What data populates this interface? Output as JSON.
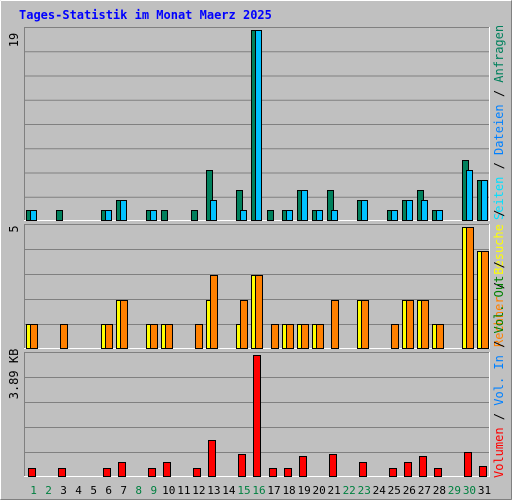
{
  "chart_data": {
    "type": "bar",
    "title": "Tages-Statistik im Monat Maerz 2025",
    "colors": {
      "background": "#c0c0c0",
      "title": "#0000ff",
      "frame_dark": "#808080",
      "frame_light": "#ffffff",
      "grid": "#808080",
      "weekday": "#000000",
      "weekend": "#008040",
      "hits": "#00805c",
      "files": "#00c0ff",
      "pages": "#00e0ff",
      "visits": "#ffff00",
      "sites": "#ff8000",
      "kbytes": "#ff0000",
      "kb_in": "#0080ff",
      "kb_out": "#008000"
    },
    "x": {
      "days": [
        1,
        2,
        3,
        4,
        5,
        6,
        7,
        8,
        9,
        10,
        11,
        12,
        13,
        14,
        15,
        16,
        17,
        18,
        19,
        20,
        21,
        22,
        23,
        24,
        25,
        26,
        27,
        28,
        29,
        30,
        31
      ],
      "weekend_days": [
        1,
        2,
        8,
        9,
        15,
        16,
        22,
        23,
        29,
        30
      ]
    },
    "panels": {
      "top": {
        "max_label": "19",
        "ylim": [
          0,
          19
        ],
        "series_labels": [
          "Anfragen",
          "Dateien",
          "Seiten"
        ],
        "series": [
          {
            "key": "hits",
            "values": [
              1,
              0,
              1,
              0,
              0,
              1,
              2,
              0,
              1,
              1,
              0,
              1,
              5,
              0,
              3,
              19,
              1,
              1,
              3,
              1,
              3,
              0,
              2,
              0,
              1,
              2,
              3,
              1,
              0,
              6,
              4
            ]
          },
          {
            "key": "files",
            "values": [
              1,
              0,
              0,
              0,
              0,
              1,
              2,
              0,
              1,
              0,
              0,
              0,
              2,
              0,
              1,
              19,
              0,
              1,
              3,
              1,
              1,
              0,
              2,
              0,
              1,
              2,
              2,
              1,
              0,
              5,
              4
            ]
          },
          {
            "key": "pages",
            "values": [
              0,
              0,
              0,
              0,
              0,
              0,
              0,
              0,
              0,
              0,
              0,
              0,
              0,
              0,
              0,
              0,
              0,
              0,
              0,
              0,
              0,
              0,
              0,
              0,
              0,
              0,
              0,
              0,
              0,
              0,
              0
            ]
          }
        ]
      },
      "middle": {
        "max_label": "5",
        "ylim": [
          0,
          5
        ],
        "series_labels": [
          "Besuche",
          "Rechner"
        ],
        "series": [
          {
            "key": "visits",
            "values": [
              1,
              0,
              0,
              0,
              0,
              1,
              2,
              0,
              1,
              1,
              0,
              0,
              2,
              0,
              1,
              3,
              0,
              1,
              1,
              1,
              0,
              0,
              2,
              0,
              0,
              2,
              2,
              1,
              0,
              5,
              4
            ]
          },
          {
            "key": "sites",
            "values": [
              1,
              0,
              1,
              0,
              0,
              1,
              2,
              0,
              1,
              1,
              0,
              1,
              3,
              0,
              2,
              3,
              1,
              1,
              1,
              1,
              2,
              0,
              2,
              0,
              1,
              2,
              2,
              1,
              0,
              5,
              4
            ]
          }
        ]
      },
      "bottom": {
        "max_label": "3.89 KB",
        "max_value": 3.89,
        "ylim": [
          0,
          3.89
        ],
        "unit": "KB",
        "series_labels": [
          "Volumen",
          "Vol. In",
          "Vol. Out"
        ],
        "series": [
          {
            "key": "kbytes",
            "values": [
              0.25,
              0,
              0.25,
              0,
              0,
              0.25,
              0.45,
              0,
              0.25,
              0.45,
              0,
              0.25,
              1.15,
              0,
              0.72,
              3.89,
              0.25,
              0.25,
              0.65,
              0,
              0.72,
              0,
              0.45,
              0,
              0.25,
              0.45,
              0.65,
              0.25,
              0,
              0.78,
              0.32
            ]
          }
        ]
      }
    }
  }
}
